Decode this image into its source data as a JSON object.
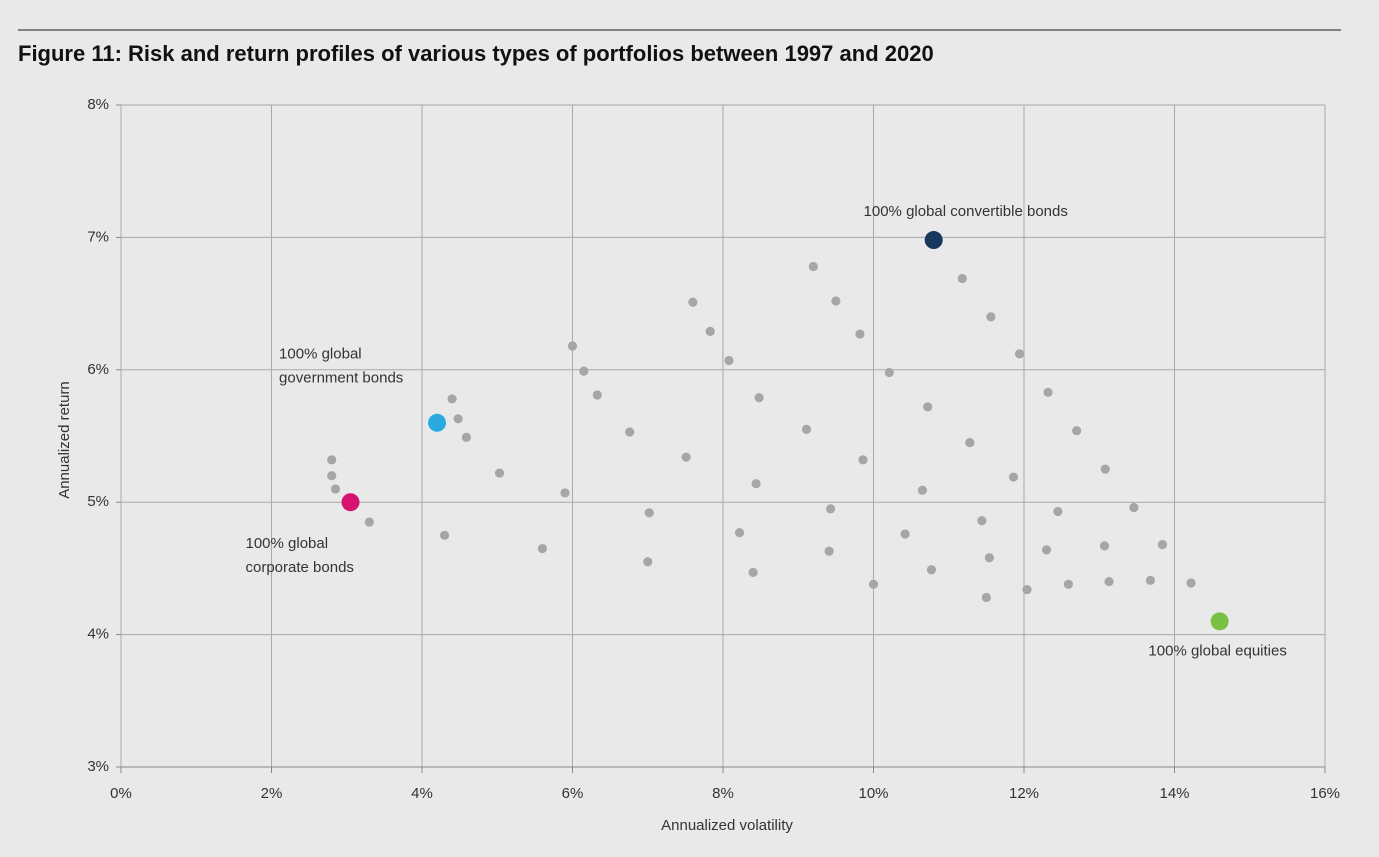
{
  "chart_data": {
    "type": "scatter",
    "title": "Figure 11: Risk and return profiles of various types of portfolios between 1997 and 2020",
    "xlabel": "Annualized volatility",
    "ylabel": "Annualized return",
    "xlim": [
      0,
      16
    ],
    "ylim": [
      3,
      8
    ],
    "xticks": [
      {
        "value": 0,
        "label": "0%"
      },
      {
        "value": 2,
        "label": "2%"
      },
      {
        "value": 4,
        "label": "4%"
      },
      {
        "value": 6,
        "label": "6%"
      },
      {
        "value": 8,
        "label": "8%"
      },
      {
        "value": 10,
        "label": "10%"
      },
      {
        "value": 12,
        "label": "12%"
      },
      {
        "value": 14,
        "label": "14%"
      },
      {
        "value": 16,
        "label": "16%"
      }
    ],
    "yticks": [
      {
        "value": 3,
        "label": "3%"
      },
      {
        "value": 4,
        "label": "4%"
      },
      {
        "value": 5,
        "label": "5%"
      },
      {
        "value": 6,
        "label": "6%"
      },
      {
        "value": 7,
        "label": "7%"
      },
      {
        "value": 8,
        "label": "8%"
      }
    ],
    "grid": true,
    "series": [
      {
        "color": "#a6a6a6",
        "x": [
          2.8,
          4.4,
          6.0,
          7.6,
          9.2,
          2.8,
          4.48,
          6.15,
          7.83,
          9.5,
          11.18,
          2.85,
          4.59,
          6.33,
          8.08,
          9.82,
          11.56,
          3.3,
          5.03,
          6.76,
          8.48,
          10.21,
          11.94,
          4.3,
          5.9,
          7.51,
          9.11,
          10.72,
          12.32,
          5.6,
          7.02,
          8.44,
          9.86,
          11.28,
          12.7,
          7.0,
          8.22,
          9.43,
          10.65,
          11.86,
          13.08,
          8.4,
          9.41,
          10.42,
          11.44,
          12.45,
          13.46,
          10.0,
          10.77,
          11.54,
          12.3,
          13.07,
          13.84,
          11.5,
          12.04,
          12.59,
          13.13,
          13.68,
          14.22
        ],
        "values": [
          5.32,
          5.78,
          6.18,
          6.51,
          6.78,
          5.2,
          5.63,
          5.99,
          6.29,
          6.52,
          6.69,
          5.1,
          5.49,
          5.81,
          6.07,
          6.27,
          6.4,
          4.85,
          5.22,
          5.53,
          5.79,
          5.98,
          6.12,
          4.75,
          5.07,
          5.34,
          5.55,
          5.72,
          5.83,
          4.65,
          4.92,
          5.14,
          5.32,
          5.45,
          5.54,
          4.55,
          4.77,
          4.95,
          5.09,
          5.19,
          5.25,
          4.47,
          4.63,
          4.76,
          4.86,
          4.93,
          4.96,
          4.38,
          4.49,
          4.58,
          4.64,
          4.67,
          4.68,
          4.28,
          4.34,
          4.38,
          4.4,
          4.41,
          4.39
        ]
      },
      {
        "color": "#17375e",
        "x": [
          10.8
        ],
        "values": [
          6.98
        ],
        "label_lines": [
          "100% global convertible bonds"
        ]
      },
      {
        "color": "#29abe2",
        "x": [
          4.2
        ],
        "values": [
          5.6
        ],
        "label_lines": [
          "100% global",
          "government bonds"
        ]
      },
      {
        "color": "#d6136e",
        "x": [
          3.05
        ],
        "values": [
          5.0
        ],
        "label_lines": [
          "100% global",
          "corporate bonds"
        ]
      },
      {
        "color": "#7ac143",
        "x": [
          14.6
        ],
        "values": [
          4.1
        ],
        "label_lines": [
          "100% global equities"
        ]
      }
    ]
  }
}
